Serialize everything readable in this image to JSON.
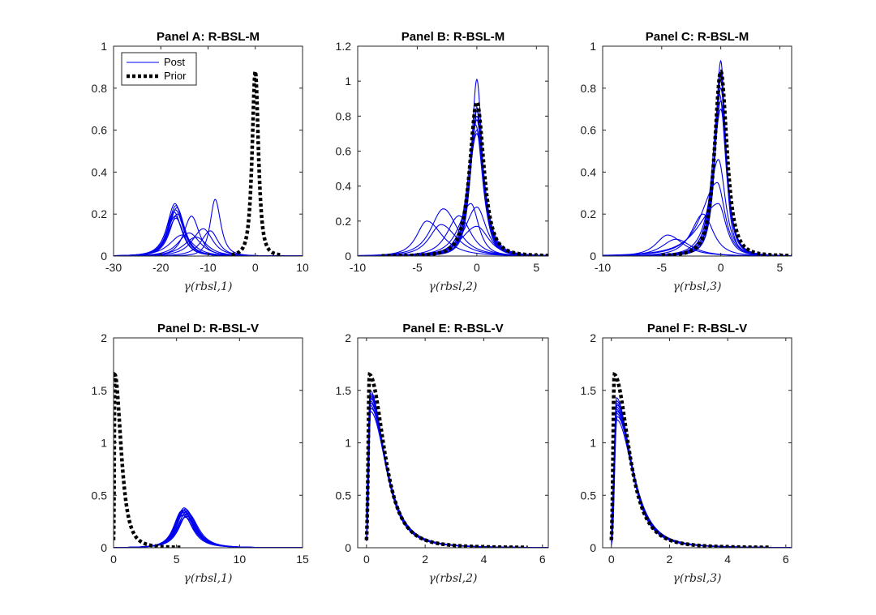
{
  "chart_data": [
    {
      "type": "line",
      "title": "Panel A: R-BSL-M",
      "xlabel": "γ(rbsl,1)",
      "xlim": [
        -30,
        10
      ],
      "ylim": [
        0,
        1
      ],
      "xticks": [
        "-30",
        "-20",
        "-10",
        "0",
        "10"
      ],
      "yticks": [
        "0",
        "0.2",
        "0.4",
        "0.6",
        "0.8",
        "1"
      ],
      "legend": {
        "position": "top-left",
        "entries": [
          "Post",
          "Prior"
        ]
      },
      "prior": {
        "shape": "peak",
        "mode": 0,
        "height": 0.88,
        "left_spread": 1.0,
        "right_spread": 1.0,
        "x_range": [
          -5,
          5.5
        ]
      },
      "posterior_curves": [
        {
          "mode": -17,
          "height": 0.25,
          "left_spread": 2.5,
          "right_spread": 2.5
        },
        {
          "mode": -16.8,
          "height": 0.24,
          "left_spread": 2.5,
          "right_spread": 2.5
        },
        {
          "mode": -16.6,
          "height": 0.23,
          "left_spread": 2.5,
          "right_spread": 2.5
        },
        {
          "mode": -16.9,
          "height": 0.22,
          "left_spread": 2.4,
          "right_spread": 2.6
        },
        {
          "mode": -17.2,
          "height": 0.21,
          "left_spread": 2.6,
          "right_spread": 2.5
        },
        {
          "mode": -16.5,
          "height": 0.2,
          "left_spread": 2.5,
          "right_spread": 2.6
        },
        {
          "mode": -17,
          "height": 0.19,
          "left_spread": 2.5,
          "right_spread": 2.5
        },
        {
          "mode": -16.8,
          "height": 0.18,
          "left_spread": 2.6,
          "right_spread": 2.5
        },
        {
          "mode": -13.5,
          "height": 0.19,
          "left_spread": 2.5,
          "right_spread": 2.5
        },
        {
          "mode": -8.5,
          "height": 0.27,
          "left_spread": 1.6,
          "right_spread": 1.8
        },
        {
          "mode": -11,
          "height": 0.13,
          "left_spread": 3.5,
          "right_spread": 3.0
        },
        {
          "mode": -9.5,
          "height": 0.12,
          "left_spread": 3.0,
          "right_spread": 2.5
        },
        {
          "mode": -15.5,
          "height": 0.1,
          "left_spread": 4.0,
          "right_spread": 3.5
        },
        {
          "mode": -12.5,
          "height": 0.09,
          "left_spread": 4.0,
          "right_spread": 3.5
        },
        {
          "mode": -14,
          "height": 0.11,
          "left_spread": 3.5,
          "right_spread": 3.5
        }
      ]
    },
    {
      "type": "line",
      "title": "Panel B: R-BSL-M",
      "xlabel": "γ(rbsl,2)",
      "xlim": [
        -10,
        6
      ],
      "ylim": [
        0,
        1.2
      ],
      "xticks": [
        "-10",
        "-5",
        "0",
        "5"
      ],
      "yticks": [
        "0",
        "0.2",
        "0.4",
        "0.6",
        "0.8",
        "1",
        "1.2"
      ],
      "prior": {
        "shape": "peak",
        "mode": 0,
        "height": 0.88,
        "left_spread": 0.9,
        "right_spread": 0.9,
        "x_range": [
          -8,
          6
        ]
      },
      "posterior_curves": [
        {
          "mode": 0,
          "height": 1.01,
          "left_spread": 0.7,
          "right_spread": 0.7
        },
        {
          "mode": 0,
          "height": 0.85,
          "left_spread": 0.8,
          "right_spread": 0.8
        },
        {
          "mode": 0,
          "height": 0.83,
          "left_spread": 0.8,
          "right_spread": 0.85
        },
        {
          "mode": 0,
          "height": 0.8,
          "left_spread": 0.9,
          "right_spread": 0.9
        },
        {
          "mode": 0,
          "height": 0.78,
          "left_spread": 0.9,
          "right_spread": 0.8
        },
        {
          "mode": -0.1,
          "height": 0.75,
          "left_spread": 1.0,
          "right_spread": 0.9
        },
        {
          "mode": 0,
          "height": 0.72,
          "left_spread": 1.0,
          "right_spread": 1.0
        },
        {
          "mode": 0,
          "height": 0.7,
          "left_spread": 1.1,
          "right_spread": 0.9
        },
        {
          "mode": -4.2,
          "height": 0.2,
          "left_spread": 1.3,
          "right_spread": 2.0
        },
        {
          "mode": -2.8,
          "height": 0.27,
          "left_spread": 1.6,
          "right_spread": 1.8
        },
        {
          "mode": 0,
          "height": 0.28,
          "left_spread": 1.5,
          "right_spread": 1.2
        },
        {
          "mode": 0,
          "height": 0.17,
          "left_spread": 2.0,
          "right_spread": 1.5
        },
        {
          "mode": -1.5,
          "height": 0.23,
          "left_spread": 1.5,
          "right_spread": 1.5
        },
        {
          "mode": -3,
          "height": 0.18,
          "left_spread": 1.5,
          "right_spread": 2.0
        },
        {
          "mode": -0.5,
          "height": 0.3,
          "left_spread": 1.5,
          "right_spread": 1.0
        }
      ]
    },
    {
      "type": "line",
      "title": "Panel C: R-BSL-M",
      "xlabel": "γ(rbsl,3)",
      "xlim": [
        -10,
        6
      ],
      "ylim": [
        0,
        1
      ],
      "xticks": [
        "-10",
        "-5",
        "0",
        "5"
      ],
      "yticks": [
        "0",
        "0.2",
        "0.4",
        "0.6",
        "0.8",
        "1"
      ],
      "prior": {
        "shape": "peak",
        "mode": 0,
        "height": 0.88,
        "left_spread": 0.8,
        "right_spread": 0.8,
        "x_range": [
          -5,
          6
        ]
      },
      "posterior_curves": [
        {
          "mode": 0,
          "height": 0.93,
          "left_spread": 0.7,
          "right_spread": 0.6
        },
        {
          "mode": 0,
          "height": 0.87,
          "left_spread": 0.7,
          "right_spread": 0.7
        },
        {
          "mode": 0,
          "height": 0.84,
          "left_spread": 0.8,
          "right_spread": 0.7
        },
        {
          "mode": 0,
          "height": 0.8,
          "left_spread": 0.8,
          "right_spread": 0.75
        },
        {
          "mode": -0.1,
          "height": 0.77,
          "left_spread": 0.9,
          "right_spread": 0.8
        },
        {
          "mode": 0,
          "height": 0.74,
          "left_spread": 0.9,
          "right_spread": 0.8
        },
        {
          "mode": 0,
          "height": 0.7,
          "left_spread": 1.0,
          "right_spread": 0.8
        },
        {
          "mode": -0.2,
          "height": 0.46,
          "left_spread": 1.2,
          "right_spread": 0.9
        },
        {
          "mode": -4.5,
          "height": 0.1,
          "left_spread": 1.5,
          "right_spread": 2.0
        },
        {
          "mode": -0.3,
          "height": 0.35,
          "left_spread": 2.0,
          "right_spread": 1.0
        },
        {
          "mode": -0.2,
          "height": 0.25,
          "left_spread": 2.5,
          "right_spread": 1.0
        },
        {
          "mode": -1.5,
          "height": 0.2,
          "left_spread": 1.5,
          "right_spread": 1.3
        },
        {
          "mode": -3.8,
          "height": 0.08,
          "left_spread": 1.8,
          "right_spread": 2.0
        }
      ]
    },
    {
      "type": "line",
      "title": "Panel D: R-BSL-V",
      "xlabel": "γ(rbsl,1)",
      "xlim": [
        0,
        15
      ],
      "ylim": [
        0,
        2
      ],
      "xticks": [
        "0",
        "5",
        "10",
        "15"
      ],
      "yticks": [
        "0",
        "0.5",
        "1",
        "1.5",
        "2"
      ],
      "prior": {
        "shape": "skewed",
        "mode": 0.1,
        "height": 1.65,
        "rise": 0.04,
        "decay": 0.55,
        "x_range": [
          0,
          5.3
        ]
      },
      "posterior_curves": [
        {
          "mode": 5.6,
          "height": 0.38,
          "left_spread": 1.0,
          "right_spread": 1.2
        },
        {
          "mode": 5.7,
          "height": 0.37,
          "left_spread": 1.0,
          "right_spread": 1.2
        },
        {
          "mode": 5.5,
          "height": 0.36,
          "left_spread": 1.0,
          "right_spread": 1.2
        },
        {
          "mode": 5.8,
          "height": 0.35,
          "left_spread": 1.05,
          "right_spread": 1.2
        },
        {
          "mode": 5.6,
          "height": 0.34,
          "left_spread": 1.0,
          "right_spread": 1.25
        },
        {
          "mode": 5.4,
          "height": 0.35,
          "left_spread": 0.95,
          "right_spread": 1.2
        },
        {
          "mode": 5.9,
          "height": 0.33,
          "left_spread": 1.05,
          "right_spread": 1.25
        },
        {
          "mode": 5.7,
          "height": 0.32,
          "left_spread": 1.05,
          "right_spread": 1.25
        },
        {
          "mode": 5.5,
          "height": 0.31,
          "left_spread": 1.0,
          "right_spread": 1.3
        },
        {
          "mode": 5.8,
          "height": 0.3,
          "left_spread": 1.1,
          "right_spread": 1.3
        },
        {
          "mode": 5.6,
          "height": 0.36,
          "left_spread": 1.0,
          "right_spread": 1.15
        },
        {
          "mode": 5.7,
          "height": 0.29,
          "left_spread": 1.1,
          "right_spread": 1.3
        }
      ]
    },
    {
      "type": "line",
      "title": "Panel E: R-BSL-V",
      "xlabel": "γ(rbsl,2)",
      "xlim": [
        -0.3,
        6.2
      ],
      "ylim": [
        0,
        2
      ],
      "xticks": [
        "0",
        "2",
        "4",
        "6"
      ],
      "yticks": [
        "0",
        "0.5",
        "1",
        "1.5",
        "2"
      ],
      "prior": {
        "shape": "skewed",
        "mode": 0.1,
        "height": 1.65,
        "rise": 0.04,
        "decay": 0.55,
        "x_range": [
          0,
          5.5
        ]
      },
      "posterior_curves": [
        {
          "mode": 0.12,
          "height": 1.5,
          "rise": 0.05,
          "decay": 0.55
        },
        {
          "mode": 0.13,
          "height": 1.47,
          "rise": 0.06,
          "decay": 0.56
        },
        {
          "mode": 0.14,
          "height": 1.45,
          "rise": 0.06,
          "decay": 0.55
        },
        {
          "mode": 0.12,
          "height": 1.44,
          "rise": 0.07,
          "decay": 0.58
        },
        {
          "mode": 0.15,
          "height": 1.42,
          "rise": 0.06,
          "decay": 0.56
        },
        {
          "mode": 0.13,
          "height": 1.4,
          "rise": 0.07,
          "decay": 0.6
        },
        {
          "mode": 0.14,
          "height": 1.38,
          "rise": 0.06,
          "decay": 0.57
        },
        {
          "mode": 0.12,
          "height": 1.36,
          "rise": 0.07,
          "decay": 0.59
        },
        {
          "mode": 0.15,
          "height": 1.33,
          "rise": 0.07,
          "decay": 0.6
        },
        {
          "mode": 0.13,
          "height": 1.3,
          "rise": 0.08,
          "decay": 0.62
        }
      ]
    },
    {
      "type": "line",
      "title": "Panel F: R-BSL-V",
      "xlabel": "γ(rbsl,3)",
      "xlim": [
        -0.3,
        6.2
      ],
      "ylim": [
        0,
        2
      ],
      "xticks": [
        "0",
        "2",
        "4",
        "6"
      ],
      "yticks": [
        "0",
        "0.5",
        "1",
        "1.5",
        "2"
      ],
      "prior": {
        "shape": "skewed",
        "mode": 0.1,
        "height": 1.65,
        "rise": 0.04,
        "decay": 0.55,
        "x_range": [
          0,
          5.5
        ]
      },
      "posterior_curves": [
        {
          "mode": 0.17,
          "height": 1.43,
          "rise": 0.06,
          "decay": 0.55
        },
        {
          "mode": 0.18,
          "height": 1.4,
          "rise": 0.07,
          "decay": 0.56
        },
        {
          "mode": 0.17,
          "height": 1.38,
          "rise": 0.07,
          "decay": 0.57
        },
        {
          "mode": 0.19,
          "height": 1.36,
          "rise": 0.07,
          "decay": 0.58
        },
        {
          "mode": 0.18,
          "height": 1.34,
          "rise": 0.08,
          "decay": 0.57
        },
        {
          "mode": 0.17,
          "height": 1.32,
          "rise": 0.08,
          "decay": 0.6
        },
        {
          "mode": 0.19,
          "height": 1.3,
          "rise": 0.08,
          "decay": 0.59
        },
        {
          "mode": 0.18,
          "height": 1.28,
          "rise": 0.09,
          "decay": 0.61
        },
        {
          "mode": 0.2,
          "height": 1.25,
          "rise": 0.09,
          "decay": 0.62
        },
        {
          "mode": 0.18,
          "height": 1.22,
          "rise": 0.1,
          "decay": 0.63
        }
      ]
    }
  ]
}
